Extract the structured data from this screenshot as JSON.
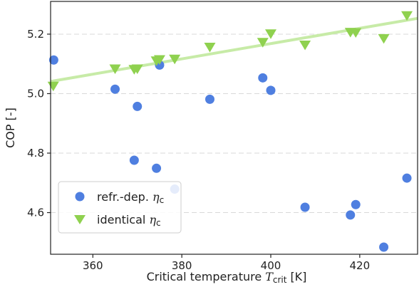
{
  "chart_data": {
    "type": "scatter",
    "xlabel_main": "Critical temperature",
    "xlabel_sym": "T",
    "xlabel_sub": "crit",
    "xlabel_unit": "[K]",
    "ylabel": "COP [-]",
    "xlim": [
      350.5,
      433.0
    ],
    "ylim": [
      4.46,
      5.31
    ],
    "xticks": [
      360,
      380,
      400,
      420
    ],
    "yticks": [
      4.6,
      4.8,
      5.0,
      5.2
    ],
    "xtick_labels": [
      "360",
      "380",
      "400",
      "420"
    ],
    "ytick_labels": [
      "4.6",
      "4.8",
      "5.0",
      "5.2"
    ],
    "grid": "horizontal dashed",
    "legend_position": "bottom-left",
    "series": [
      {
        "name": "refr.-dep. ",
        "name_sym": "η",
        "name_sub": "c",
        "marker": "circle",
        "color": "#4f7fe0",
        "x": [
          351.2,
          365.0,
          370.0,
          375.0,
          369.3,
          374.3,
          378.4,
          386.3,
          398.2,
          400.0,
          407.7,
          417.9,
          419.1,
          425.4,
          430.6
        ],
        "y": [
          5.113,
          5.015,
          4.957,
          5.096,
          4.776,
          4.749,
          4.679,
          4.981,
          5.053,
          5.011,
          4.618,
          4.592,
          4.627,
          4.484,
          4.716
        ]
      },
      {
        "name": "identical ",
        "name_sym": "η",
        "name_sub": "c",
        "marker": "triangle-down",
        "color": "#8fd14f",
        "x": [
          351.1,
          365.0,
          369.3,
          370.0,
          374.3,
          375.0,
          378.4,
          386.3,
          398.2,
          400.0,
          407.7,
          417.9,
          419.1,
          425.4,
          430.6
        ],
        "y": [
          5.027,
          5.085,
          5.083,
          5.085,
          5.112,
          5.116,
          5.118,
          5.158,
          5.174,
          5.203,
          5.165,
          5.208,
          5.207,
          5.187,
          5.264
        ]
      }
    ],
    "trendline": {
      "series": "identical",
      "color": "#c7eba7",
      "x": [
        350.5,
        433.0
      ],
      "y": [
        5.041,
        5.253
      ]
    }
  }
}
